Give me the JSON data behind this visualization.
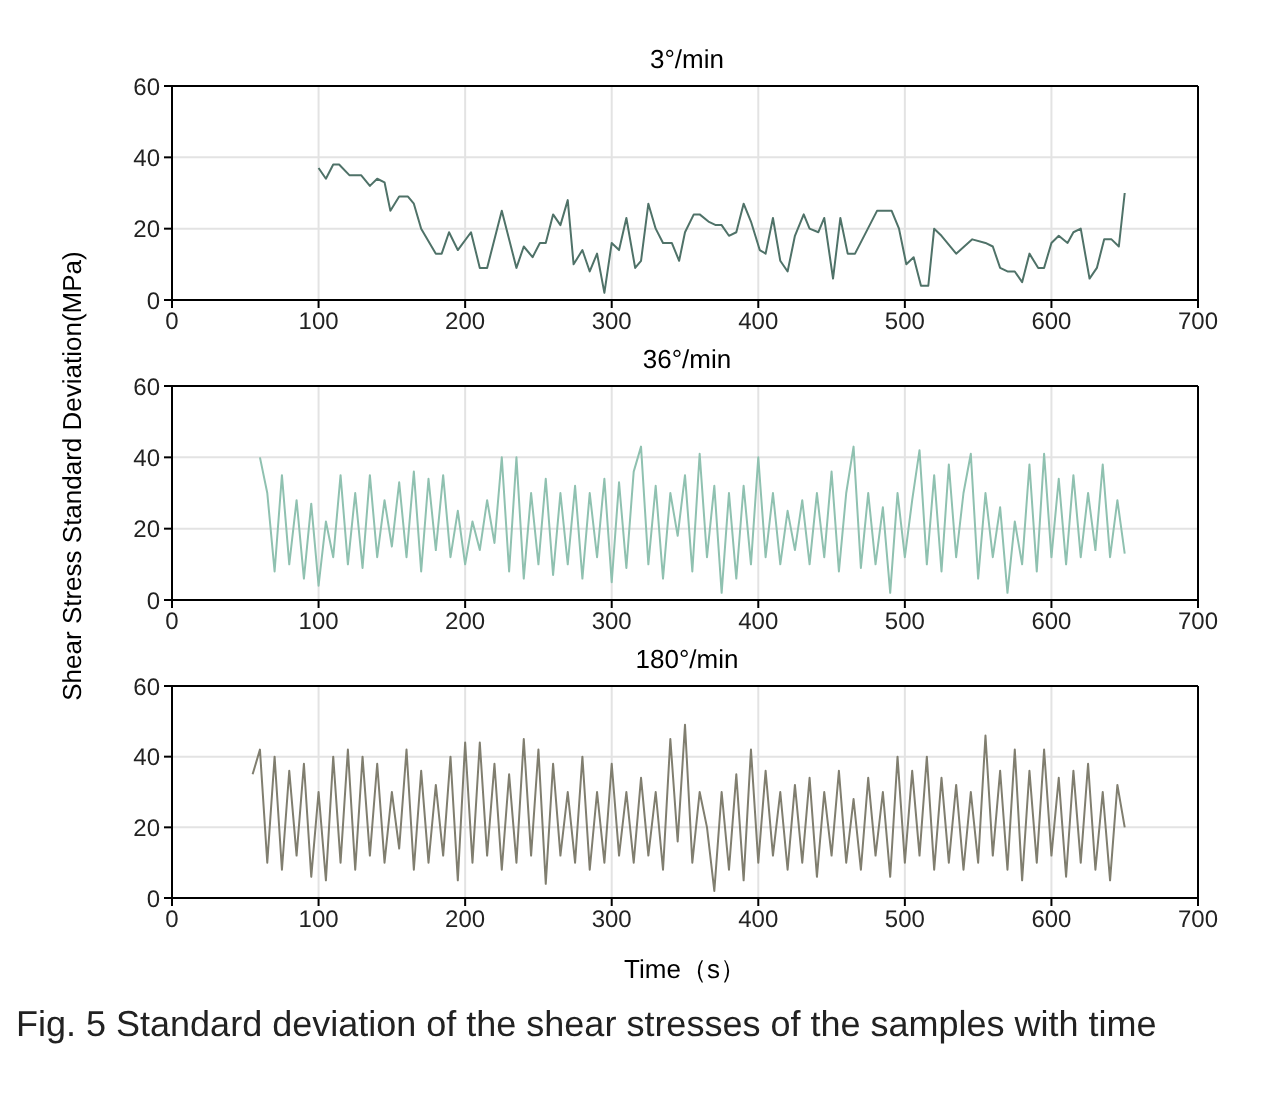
{
  "chart_data": [
    {
      "type": "line",
      "title": "3°/min",
      "xlim": [
        0,
        700
      ],
      "xticks": [
        0,
        100,
        200,
        300,
        400,
        500,
        600,
        700
      ],
      "ylim": [
        0,
        60
      ],
      "yticks": [
        0,
        20,
        40,
        60
      ],
      "grid": true,
      "x": [
        100,
        105,
        110,
        114,
        121,
        124,
        129,
        135,
        140,
        145,
        149,
        155,
        161,
        165,
        170,
        180,
        184,
        189,
        195,
        204,
        210,
        215,
        225,
        235,
        240,
        246,
        251,
        255,
        260,
        265,
        270,
        274,
        280,
        285,
        290,
        295,
        300,
        305,
        310,
        316,
        320,
        325,
        330,
        335,
        341,
        346,
        350,
        356,
        360,
        366,
        371,
        375,
        380,
        385,
        390,
        395,
        401,
        405,
        410,
        415,
        420,
        425,
        431,
        435,
        441,
        445,
        451,
        456,
        461,
        466,
        471,
        481,
        486,
        491,
        496,
        501,
        506,
        511,
        516,
        520,
        525,
        535,
        546,
        555,
        560,
        565,
        570,
        575,
        580,
        585,
        591,
        595,
        600,
        605,
        611,
        615,
        620,
        626,
        631,
        636,
        641,
        646,
        650
      ],
      "series": [
        {
          "color": "#4f7268",
          "values": [
            37,
            34,
            38,
            38,
            35,
            35,
            35,
            32,
            34,
            33,
            25,
            29,
            29,
            27,
            20,
            13,
            13,
            19,
            14,
            19,
            9,
            9,
            25,
            9,
            15,
            12,
            16,
            16,
            24,
            21,
            28,
            10,
            14,
            8,
            13,
            2,
            16,
            14,
            23,
            9,
            11,
            27,
            20,
            16,
            16,
            11,
            19,
            24,
            24,
            22,
            21,
            21,
            18,
            19,
            27,
            22,
            14,
            13,
            23,
            11,
            8,
            18,
            24,
            20,
            19,
            23,
            6,
            23,
            13,
            13,
            17,
            25,
            25,
            25,
            20,
            10,
            12,
            4,
            4,
            20,
            18,
            13,
            17,
            16,
            15,
            9,
            8,
            8,
            5,
            13,
            9,
            9,
            16,
            18,
            16,
            19,
            20,
            6,
            9,
            17,
            17,
            15,
            30
          ]
        }
      ]
    },
    {
      "type": "line",
      "title": "36°/min",
      "ylabel": "Shear Stress Standard Deviation(MPa)",
      "xlim": [
        0,
        700
      ],
      "xticks": [
        0,
        100,
        200,
        300,
        400,
        500,
        600,
        700
      ],
      "ylim": [
        0,
        60
      ],
      "yticks": [
        0,
        20,
        40,
        60
      ],
      "grid": true,
      "x": [
        60,
        65,
        70,
        75,
        80,
        85,
        90,
        95,
        100,
        105,
        110,
        115,
        120,
        125,
        130,
        135,
        140,
        145,
        150,
        155,
        160,
        165,
        170,
        175,
        180,
        185,
        190,
        195,
        200,
        205,
        210,
        215,
        220,
        225,
        230,
        235,
        240,
        245,
        250,
        255,
        260,
        265,
        270,
        275,
        280,
        285,
        290,
        295,
        300,
        305,
        310,
        315,
        320,
        325,
        330,
        335,
        340,
        345,
        350,
        355,
        360,
        365,
        370,
        375,
        380,
        385,
        390,
        395,
        400,
        405,
        410,
        415,
        420,
        425,
        430,
        435,
        440,
        445,
        450,
        455,
        460,
        465,
        470,
        475,
        480,
        485,
        490,
        495,
        500,
        505,
        510,
        515,
        520,
        525,
        530,
        535,
        540,
        545,
        550,
        555,
        560,
        565,
        570,
        575,
        580,
        585,
        590,
        595,
        600,
        605,
        610,
        615,
        620,
        625,
        630,
        635,
        640,
        645,
        650
      ],
      "series": [
        {
          "color": "#8fc1b0",
          "values": [
            40,
            30,
            8,
            35,
            10,
            28,
            6,
            27,
            4,
            22,
            12,
            35,
            10,
            30,
            9,
            35,
            12,
            28,
            15,
            33,
            12,
            36,
            8,
            34,
            14,
            35,
            12,
            25,
            10,
            22,
            14,
            28,
            16,
            40,
            8,
            40,
            6,
            30,
            10,
            34,
            7,
            30,
            10,
            32,
            6,
            30,
            12,
            34,
            5,
            33,
            9,
            36,
            43,
            10,
            32,
            6,
            30,
            18,
            35,
            8,
            41,
            12,
            32,
            2,
            30,
            6,
            32,
            10,
            40,
            12,
            30,
            10,
            25,
            14,
            28,
            10,
            30,
            12,
            36,
            8,
            30,
            43,
            9,
            30,
            10,
            26,
            2,
            30,
            12,
            28,
            42,
            10,
            35,
            8,
            38,
            12,
            30,
            41,
            6,
            30,
            12,
            26,
            2,
            22,
            10,
            38,
            8,
            41,
            12,
            34,
            10,
            35,
            12,
            30,
            14,
            38,
            12,
            28,
            13
          ]
        }
      ]
    },
    {
      "type": "line",
      "title": "180°/min",
      "xlabel": "Time（s）",
      "xlim": [
        0,
        700
      ],
      "xticks": [
        0,
        100,
        200,
        300,
        400,
        500,
        600,
        700
      ],
      "ylim": [
        0,
        60
      ],
      "yticks": [
        0,
        20,
        40,
        60
      ],
      "grid": true,
      "annotations": [
        "Fig. 5  Standard deviation of the shear stresses of the samples with time"
      ],
      "x": [
        55,
        60,
        65,
        70,
        75,
        80,
        85,
        90,
        95,
        100,
        105,
        110,
        115,
        120,
        125,
        130,
        135,
        140,
        145,
        150,
        155,
        160,
        165,
        170,
        175,
        180,
        185,
        190,
        195,
        200,
        205,
        210,
        215,
        220,
        225,
        230,
        235,
        240,
        245,
        250,
        255,
        260,
        265,
        270,
        275,
        280,
        285,
        290,
        295,
        300,
        305,
        310,
        315,
        320,
        325,
        330,
        335,
        340,
        345,
        350,
        355,
        360,
        365,
        370,
        375,
        380,
        385,
        390,
        395,
        400,
        405,
        410,
        415,
        420,
        425,
        430,
        435,
        440,
        445,
        450,
        455,
        460,
        465,
        470,
        475,
        480,
        485,
        490,
        495,
        500,
        505,
        510,
        515,
        520,
        525,
        530,
        535,
        540,
        545,
        550,
        555,
        560,
        565,
        570,
        575,
        580,
        585,
        590,
        595,
        600,
        605,
        610,
        615,
        620,
        625,
        630,
        635,
        640,
        645,
        650
      ],
      "series": [
        {
          "color": "#807e6f",
          "values": [
            35,
            42,
            10,
            40,
            8,
            36,
            12,
            38,
            6,
            30,
            5,
            40,
            10,
            42,
            8,
            40,
            12,
            38,
            10,
            30,
            14,
            42,
            8,
            36,
            10,
            32,
            12,
            40,
            5,
            44,
            10,
            44,
            12,
            38,
            8,
            35,
            10,
            45,
            12,
            42,
            4,
            38,
            12,
            30,
            10,
            40,
            8,
            30,
            10,
            38,
            12,
            30,
            10,
            34,
            12,
            30,
            8,
            45,
            16,
            49,
            10,
            30,
            20,
            2,
            30,
            8,
            35,
            5,
            42,
            10,
            36,
            12,
            30,
            8,
            32,
            10,
            34,
            6,
            30,
            12,
            36,
            10,
            28,
            8,
            34,
            12,
            30,
            6,
            40,
            10,
            36,
            12,
            40,
            8,
            34,
            10,
            32,
            8,
            30,
            10,
            46,
            12,
            36,
            8,
            42,
            5,
            36,
            10,
            42,
            12,
            34,
            6,
            36,
            10,
            38,
            8,
            30,
            5,
            32,
            20
          ]
        }
      ]
    }
  ]
}
